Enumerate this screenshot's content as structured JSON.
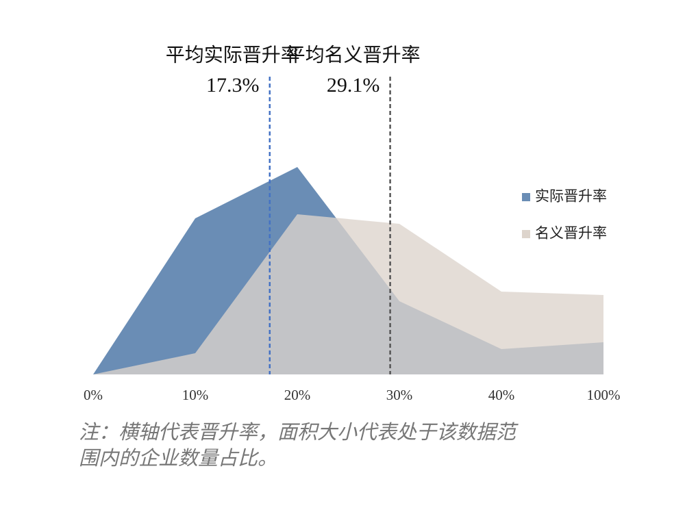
{
  "chart_data": {
    "type": "area",
    "categories": [
      "0%",
      "10%",
      "20%",
      "30%",
      "40%",
      "100%"
    ],
    "series": [
      {
        "name": "实际晋升率",
        "color": "#6a8db5",
        "values": [
          0,
          22.8,
          30.3,
          10.7,
          3.7,
          4.7
        ]
      },
      {
        "name": "名义晋升率",
        "color": "#ddd4cc",
        "values": [
          0,
          3.1,
          23.4,
          22.0,
          12.1,
          11.6
        ]
      }
    ],
    "reference_lines": [
      {
        "name": "平均实际晋升率",
        "value": 17.3,
        "label": "17.3%",
        "color": "#4472c4"
      },
      {
        "name": "平均名义晋升率",
        "value": 29.1,
        "label": "29.1%",
        "color": "#555555"
      }
    ],
    "legend": "right",
    "note": [
      "注：横轴代表晋升率，面积大小代表处于该数据范",
      "围内的企业数量占比。"
    ]
  }
}
